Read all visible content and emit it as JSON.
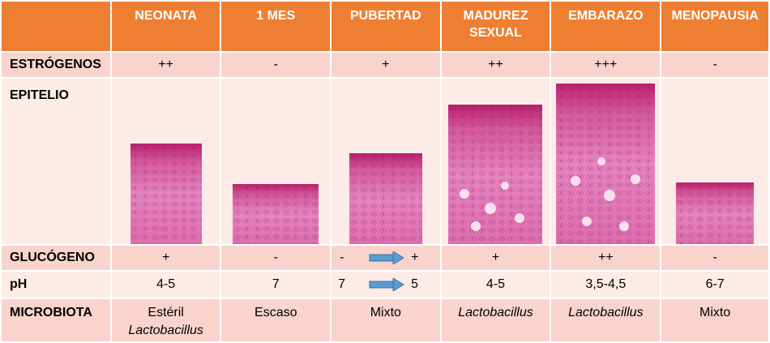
{
  "headers": [
    "NEONATA",
    "1 MES",
    "PUBERTAD",
    "MADUREZ SEXUAL",
    "EMBARAZO",
    "MENOPAUSIA"
  ],
  "header_lines": [
    [
      "NEONATA"
    ],
    [
      "1 MES"
    ],
    [
      "PUBERTAD"
    ],
    [
      "MADUREZ",
      "SEXUAL"
    ],
    [
      "EMBARAZO"
    ],
    [
      "MENOPAUSIA"
    ]
  ],
  "rows": {
    "estrogenos": {
      "label": "ESTRÓGENOS",
      "values": [
        "++",
        "-",
        "+",
        "++",
        "+++",
        "-"
      ]
    },
    "epitelio": {
      "label": "EPITELIO"
    },
    "glucogeno": {
      "label": "GLUCÓGENO",
      "values": [
        "+",
        "-",
        "",
        "+",
        "++",
        "-"
      ],
      "pubertad_from": "-",
      "pubertad_to": "+"
    },
    "ph": {
      "label": "pH",
      "values": [
        "4-5",
        "7",
        "",
        "4-5",
        "3,5-4,5",
        "6-7"
      ],
      "pubertad_from": "7",
      "pubertad_to": "5"
    },
    "microbiota": {
      "label": "MICROBIOTA",
      "neonata_line1": "Estéril",
      "neonata_line2": "Lactobacillus",
      "values": [
        "",
        "Escaso",
        "Mixto",
        "Lactobacillus",
        "Lactobacillus",
        "Mixto"
      ]
    }
  },
  "colors": {
    "header_bg": "#ee7f32",
    "row_dark": "#f8d4cc",
    "row_light": "#fcebe7",
    "tissue_top": "#c8307e",
    "tissue_body": "#e888c0",
    "arrow": "#5b9bd5"
  }
}
